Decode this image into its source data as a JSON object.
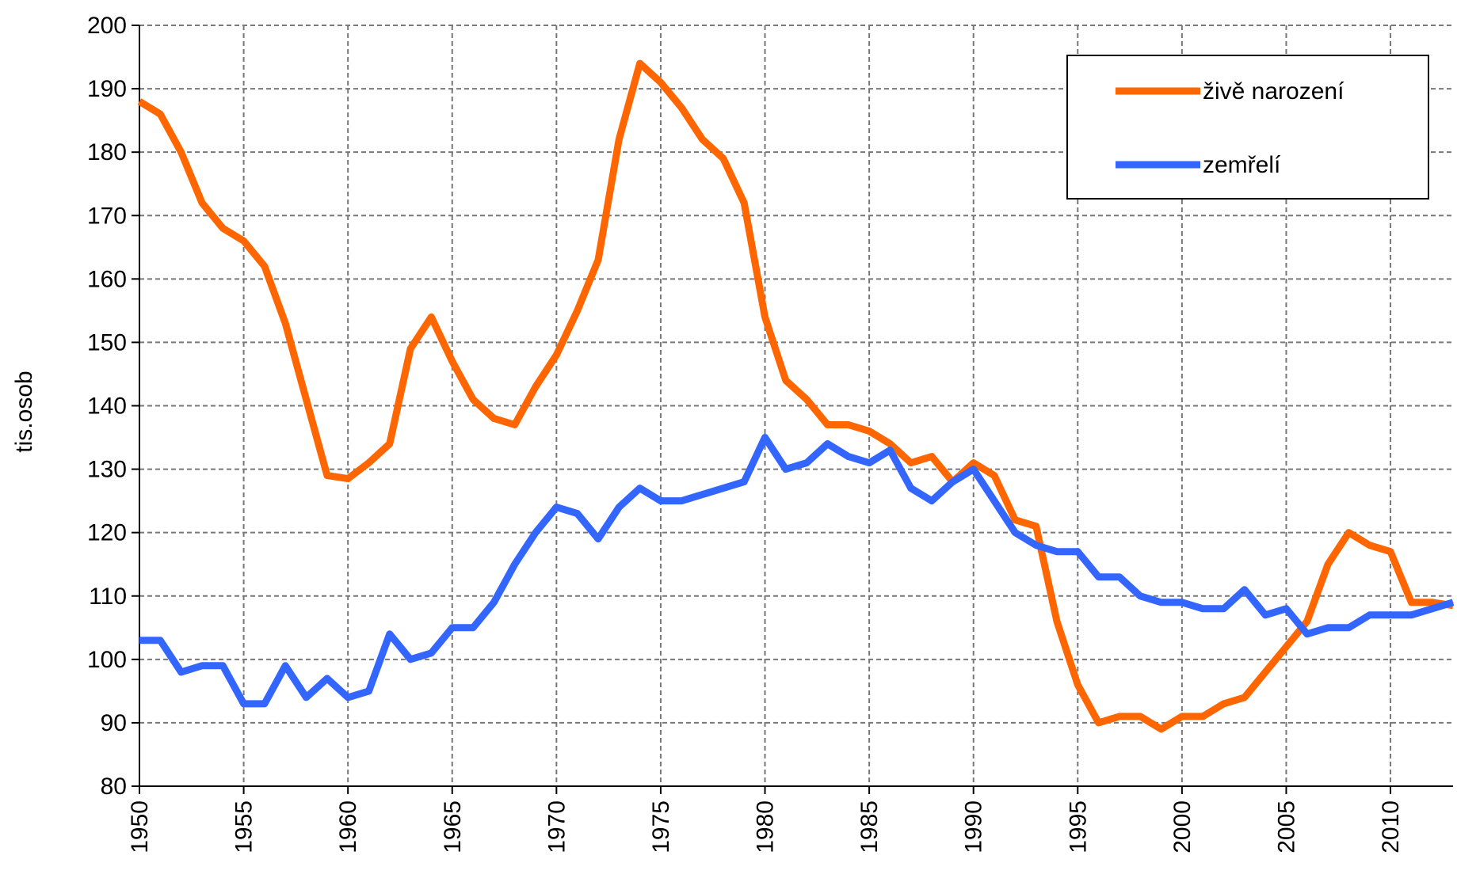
{
  "chart_data": {
    "type": "line",
    "y_label": "tis.osob",
    "x": [
      1950,
      1951,
      1952,
      1953,
      1954,
      1955,
      1956,
      1957,
      1958,
      1959,
      1960,
      1961,
      1962,
      1963,
      1964,
      1965,
      1966,
      1967,
      1968,
      1969,
      1970,
      1971,
      1972,
      1973,
      1974,
      1975,
      1976,
      1977,
      1978,
      1979,
      1980,
      1981,
      1982,
      1983,
      1984,
      1985,
      1986,
      1987,
      1988,
      1989,
      1990,
      1991,
      1992,
      1993,
      1994,
      1995,
      1996,
      1997,
      1998,
      1999,
      2000,
      2001,
      2002,
      2003,
      2004,
      2005,
      2006,
      2007,
      2008,
      2009,
      2010,
      2011,
      2012,
      2013
    ],
    "series": [
      {
        "name": "živě narození",
        "color": "#ff6600",
        "values": [
          188,
          186,
          180,
          172,
          168,
          166,
          162,
          153,
          141,
          129,
          128.5,
          131,
          134,
          149,
          154,
          147,
          141,
          138,
          137,
          143,
          148,
          155,
          163,
          182,
          194,
          191,
          187,
          182,
          179,
          172,
          154,
          144,
          141,
          137,
          137,
          136,
          134,
          131,
          132,
          128,
          131,
          129,
          122,
          121,
          106,
          96,
          90,
          91,
          91,
          89,
          91,
          91,
          93,
          94,
          98,
          102,
          106,
          115,
          120,
          118,
          117,
          109,
          109,
          108.5
        ]
      },
      {
        "name": "zemřelí",
        "color": "#3366ff",
        "values": [
          103,
          103,
          98,
          99,
          99,
          93,
          93,
          99,
          94,
          97,
          94,
          95,
          104,
          100,
          101,
          105,
          105,
          109,
          115,
          120,
          124,
          123,
          119,
          124,
          127,
          125,
          125,
          126,
          127,
          128,
          135,
          130,
          131,
          134,
          132,
          131,
          133,
          127,
          125,
          128,
          130,
          125,
          120,
          118,
          117,
          117,
          113,
          113,
          110,
          109,
          109,
          108,
          108,
          111,
          107,
          108,
          104,
          105,
          105,
          107,
          107,
          107,
          108,
          109
        ]
      }
    ],
    "xlim": [
      1950,
      2013
    ],
    "xticks": [
      1950,
      1955,
      1960,
      1965,
      1970,
      1975,
      1980,
      1985,
      1990,
      1995,
      2000,
      2005,
      2010
    ],
    "ylim": [
      80,
      200
    ],
    "yticks": [
      80,
      90,
      100,
      110,
      120,
      130,
      140,
      150,
      160,
      170,
      180,
      190,
      200
    ],
    "grid": true,
    "legend": "top-right"
  }
}
